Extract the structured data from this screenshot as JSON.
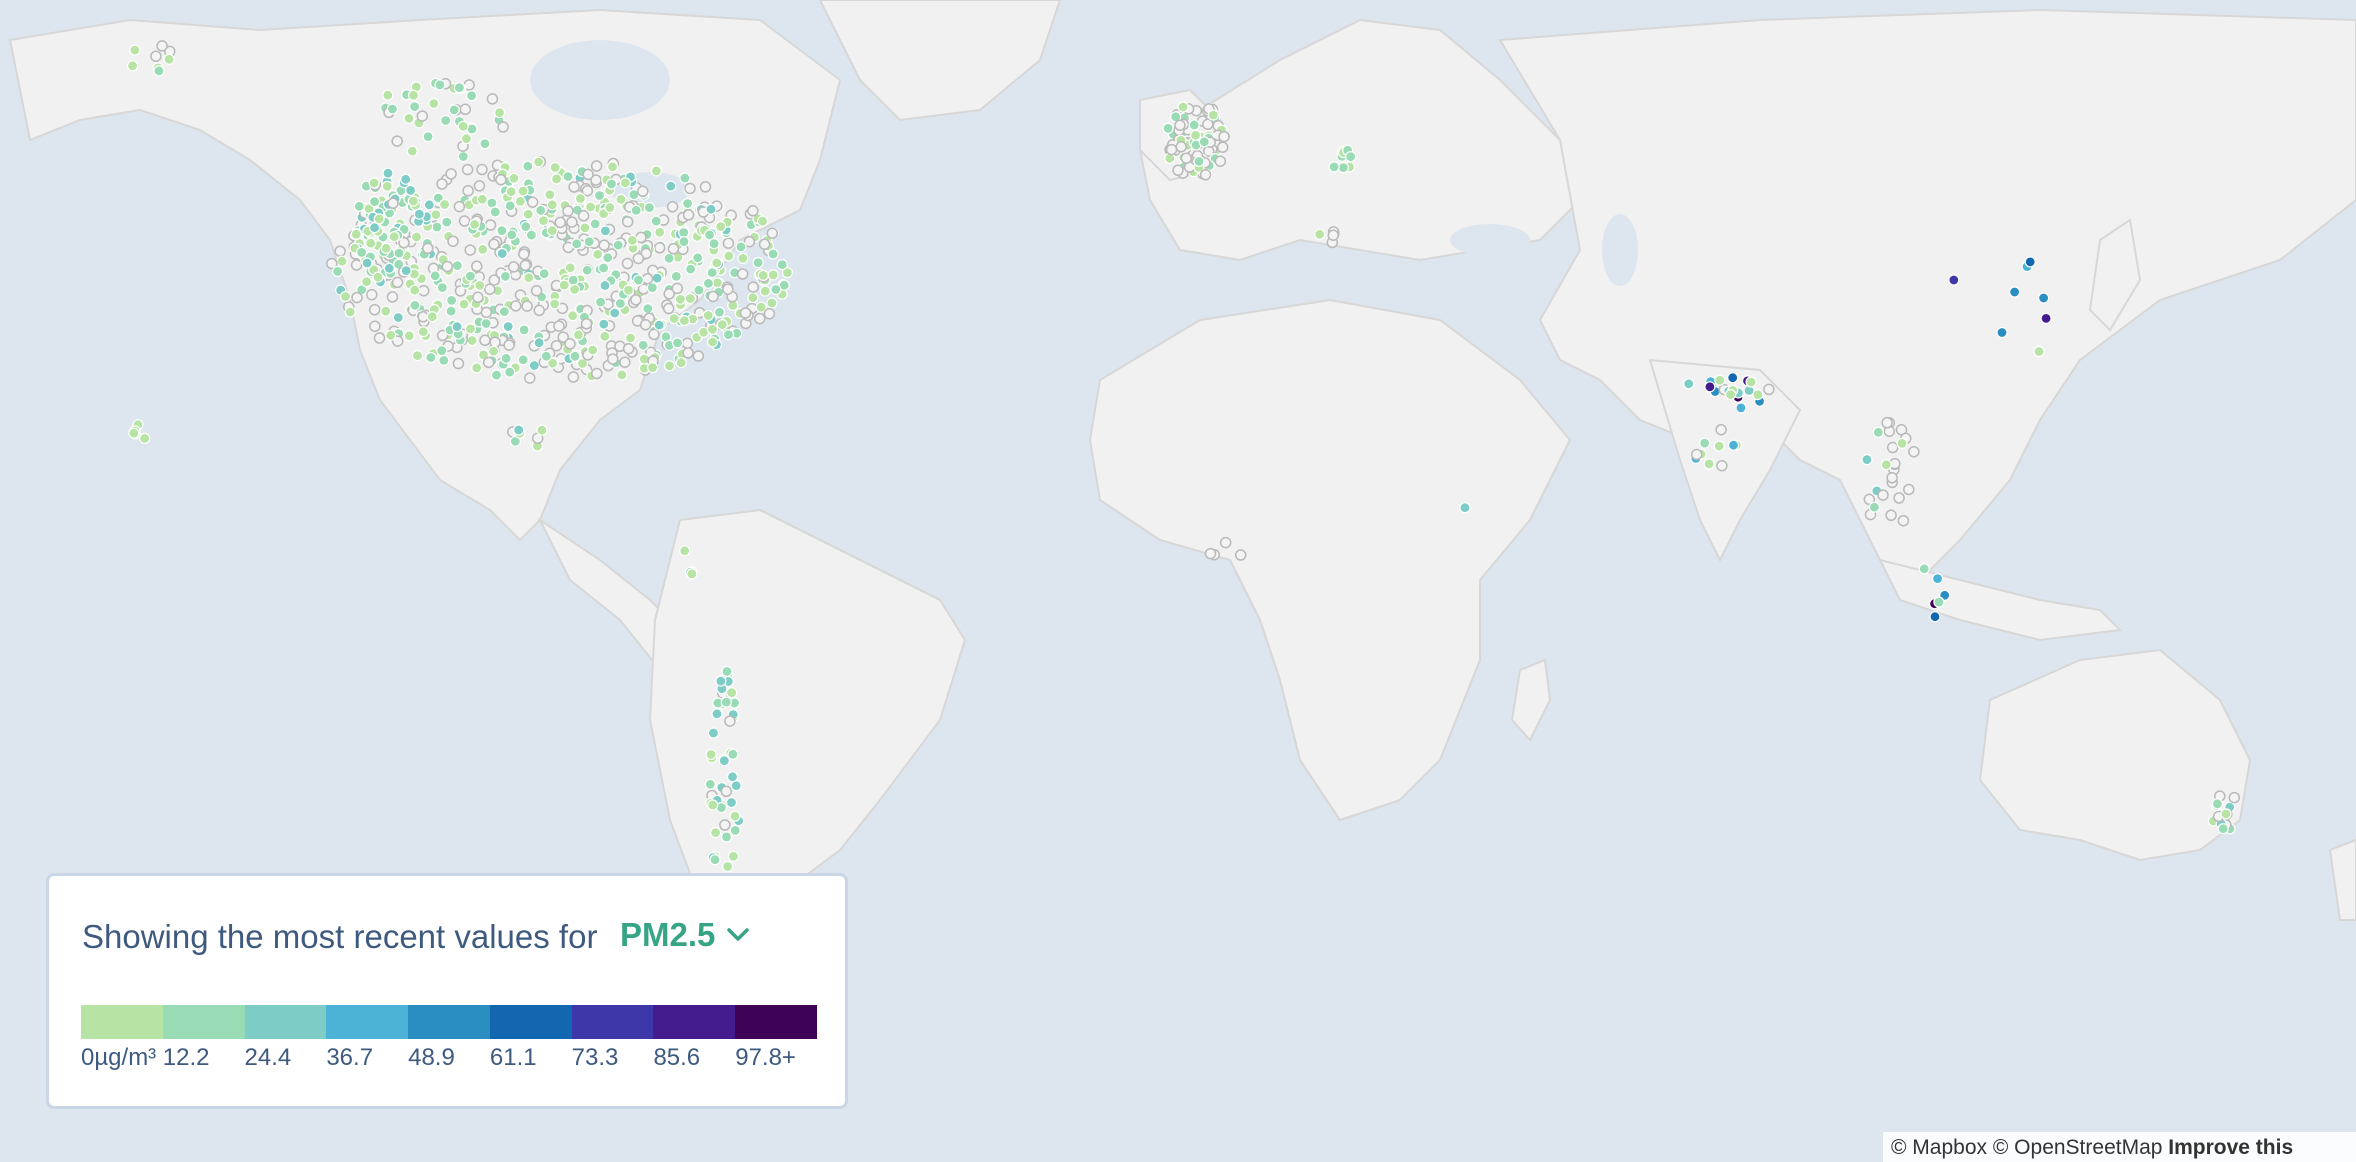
{
  "legend": {
    "prefix": "Showing the most recent values for",
    "parameter": "PM2.5",
    "dropdown_icon": "chevron-down-icon",
    "scale_colors": [
      "#b7e4a5",
      "#98dbb5",
      "#7dccc6",
      "#4db3d6",
      "#2b8ec0",
      "#1366b0",
      "#3d37a9",
      "#451c8d",
      "#3e0356"
    ],
    "scale_labels": [
      "0µg/m³",
      "12.2",
      "24.4",
      "36.7",
      "48.9",
      "61.1",
      "73.3",
      "85.6",
      "97.8+"
    ]
  },
  "attribution": {
    "mapbox": "© Mapbox",
    "osm": "© OpenStreetMap",
    "improve": "Improve this"
  },
  "colors": {
    "ocean": "#dde6ef",
    "land": "#f1f1f1",
    "border": "#d7d7d7",
    "no_data_station": "#f4f4f4"
  }
}
